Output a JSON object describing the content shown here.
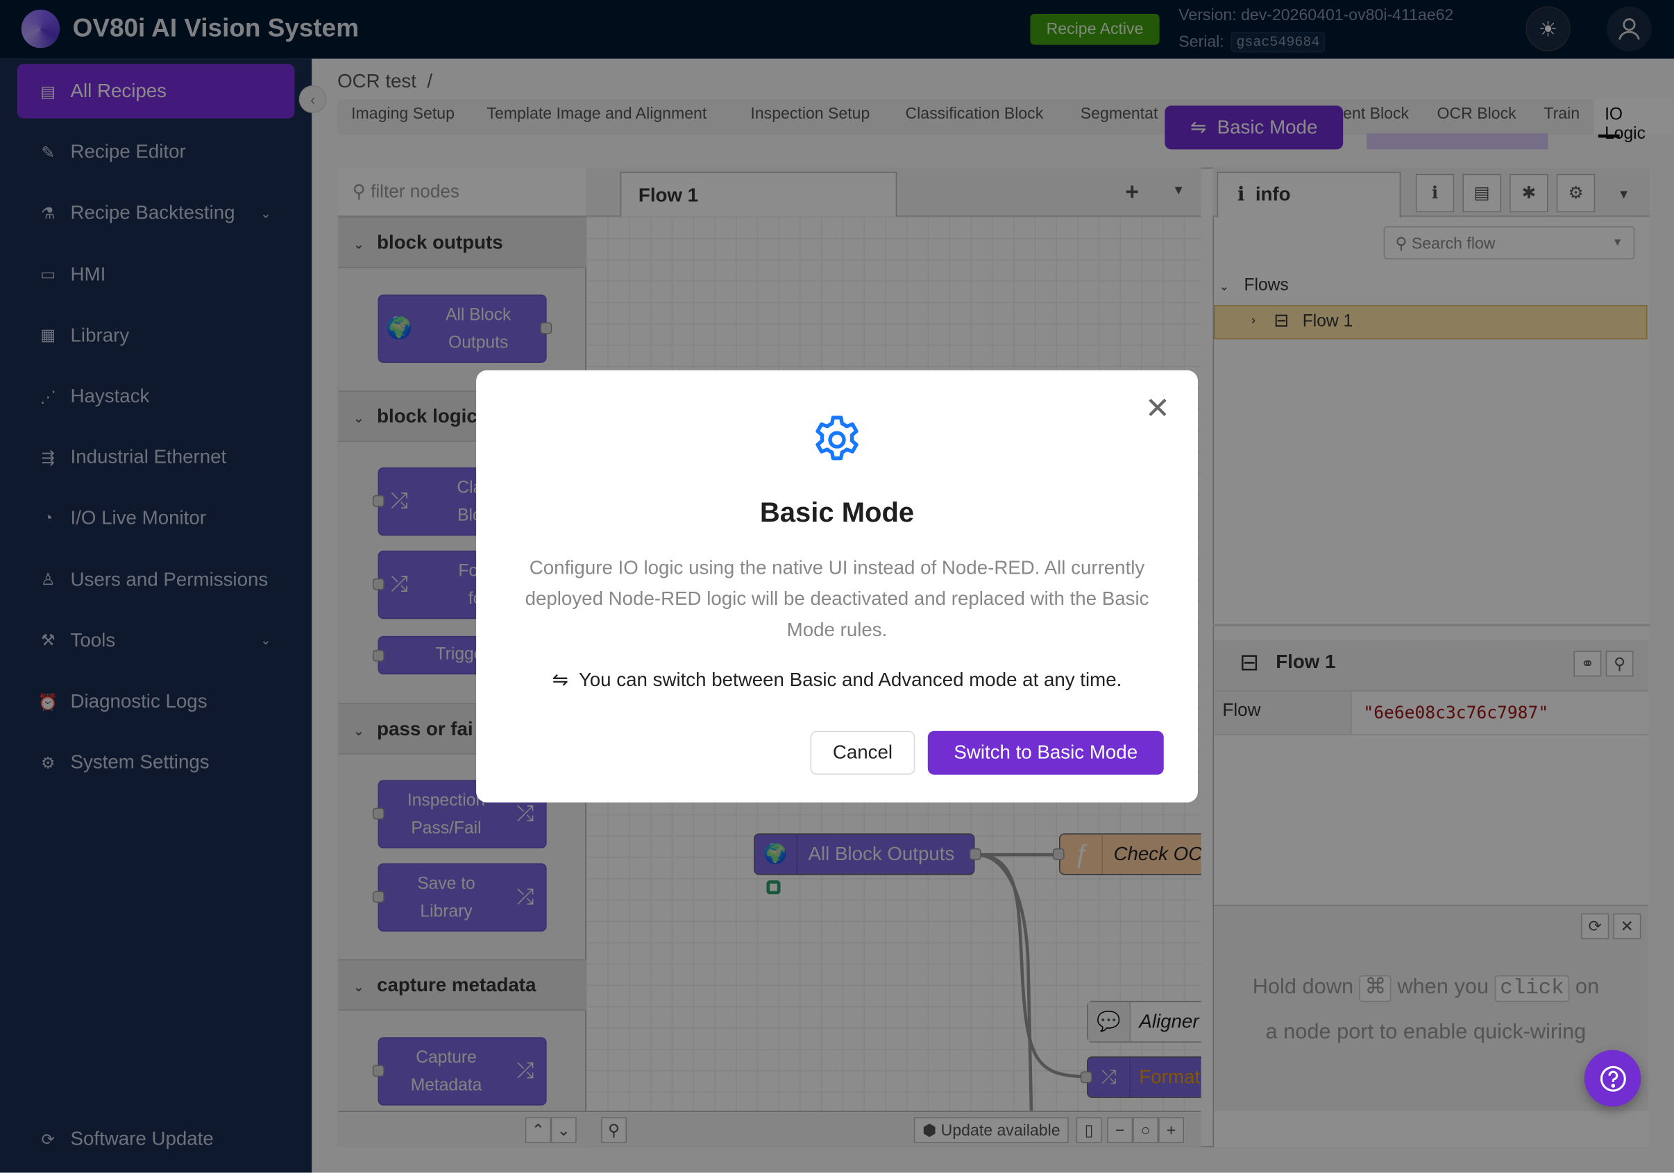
{
  "header": {
    "title": "OV80i AI Vision System",
    "status_badge": "Recipe Active",
    "version": "Version: dev-20260401-ov80i-411ae62",
    "serial_label": "Serial:",
    "serial_value": "gsac549684"
  },
  "sidebar": {
    "items": [
      {
        "label": "All Recipes",
        "icon": "recipe-list-icon",
        "active": true
      },
      {
        "label": "Recipe Editor",
        "icon": "pen-icon"
      },
      {
        "label": "Recipe Backtesting",
        "icon": "flask-icon",
        "expandable": true
      },
      {
        "label": "HMI",
        "icon": "monitor-icon"
      },
      {
        "label": "Library",
        "icon": "table-icon"
      },
      {
        "label": "Haystack",
        "icon": "scatter-icon"
      },
      {
        "label": "Industrial Ethernet",
        "icon": "network-icon"
      },
      {
        "label": "I/O Live Monitor",
        "icon": "gauge-icon"
      },
      {
        "label": "Users and Permissions",
        "icon": "user-icon"
      },
      {
        "label": "Tools",
        "icon": "wrench-icon",
        "expandable": true
      },
      {
        "label": "Diagnostic Logs",
        "icon": "alarm-icon"
      },
      {
        "label": "System Settings",
        "icon": "gear-icon"
      }
    ],
    "footer": "Software Update"
  },
  "breadcrumb": {
    "recipe": "OCR test",
    "sep": "/"
  },
  "tabs": [
    "Imaging Setup",
    "Template Image and Alignment",
    "Inspection Setup",
    "Classification Block",
    "Segmentat",
    "ent Block",
    "OCR Block",
    "Train",
    "IO Logic"
  ],
  "active_tab": "IO Logic",
  "basic_mode_button": "Basic Mode",
  "palette": {
    "filter_placeholder": "filter nodes",
    "categories": [
      {
        "name": "block outputs",
        "nodes": [
          [
            "All Block",
            "Outputs"
          ]
        ]
      },
      {
        "name": "block logic",
        "nodes": [
          [
            "Class",
            "Block"
          ],
          [
            "Form",
            "for"
          ],
          [
            "Trigger"
          ]
        ]
      },
      {
        "name": "pass or fai",
        "nodes": [
          [
            "Inspection",
            "Pass/Fail"
          ],
          [
            "Save to",
            "Library"
          ]
        ]
      },
      {
        "name": "capture metadata",
        "nodes": [
          [
            "Capture",
            "Metadata"
          ]
        ]
      }
    ]
  },
  "canvas": {
    "tab": "Flow 1",
    "nodes": {
      "all_block_outputs": "All Block Outputs",
      "check": "Check OC",
      "aligner": "Aligner",
      "format": "Format"
    },
    "update": "Update available"
  },
  "info": {
    "tab": "info",
    "search_placeholder": "Search flow",
    "flows_label": "Flows",
    "flow_item": "Flow 1",
    "flow_title": "Flow 1",
    "prop_key": "Flow",
    "prop_value": "\"6e6e08c3c76c7987\"",
    "hint_a": "Hold down",
    "hint_key": "⌘",
    "hint_b": "when you",
    "hint_click": "click",
    "hint_c": "on",
    "hint_line2": "a node port to enable quick-wiring"
  },
  "modal": {
    "title": "Basic Mode",
    "body": "Configure IO logic using the native UI instead of Node-RED. All currently deployed Node-RED logic will be deactivated and replaced with the Basic Mode rules.",
    "note": "You can switch between Basic and Advanced mode at any time.",
    "cancel": "Cancel",
    "confirm": "Switch to Basic Mode"
  },
  "colors": {
    "accent": "#722ed1",
    "gear": "#1677ff",
    "badge": "#3fa010",
    "flow_id": "#a31515"
  }
}
